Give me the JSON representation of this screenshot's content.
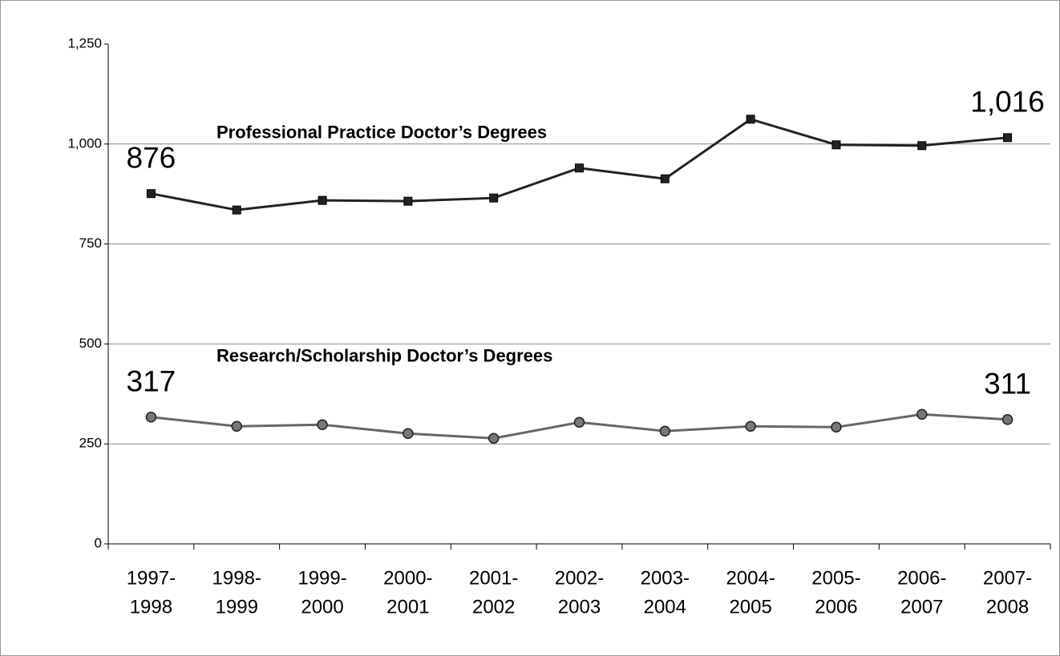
{
  "chart_data": {
    "type": "line",
    "categories": [
      [
        "1997-",
        "1998"
      ],
      [
        "1998-",
        "1999"
      ],
      [
        "1999-",
        "2000"
      ],
      [
        "2000-",
        "2001"
      ],
      [
        "2001-",
        "2002"
      ],
      [
        "2002-",
        "2003"
      ],
      [
        "2003-",
        "2004"
      ],
      [
        "2004-",
        "2005"
      ],
      [
        "2005-",
        "2006"
      ],
      [
        "2006-",
        "2007"
      ],
      [
        "2007-",
        "2008"
      ]
    ],
    "series": [
      {
        "name": "Professional Practice Doctor’s Degrees",
        "color": "#222222",
        "marker": "square",
        "values": [
          876,
          835,
          859,
          857,
          865,
          940,
          913,
          1062,
          998,
          996,
          1016
        ],
        "value_labels": [
          "876",
          null,
          null,
          null,
          null,
          null,
          null,
          null,
          null,
          null,
          "1,016"
        ]
      },
      {
        "name": "Research/Scholarship Doctor’s Degrees",
        "color": "#666666",
        "marker": "circle",
        "values": [
          317,
          294,
          298,
          276,
          264,
          304,
          282,
          294,
          292,
          324,
          311
        ],
        "value_labels": [
          "317",
          null,
          null,
          null,
          null,
          null,
          null,
          null,
          null,
          null,
          "311"
        ]
      }
    ],
    "ylim": [
      0,
      1250
    ],
    "yticks": [
      0,
      250,
      500,
      750,
      {
        "value": 1000,
        "label": "1,000"
      },
      {
        "value": 1250,
        "label": "1,250"
      }
    ],
    "grid": true
  }
}
